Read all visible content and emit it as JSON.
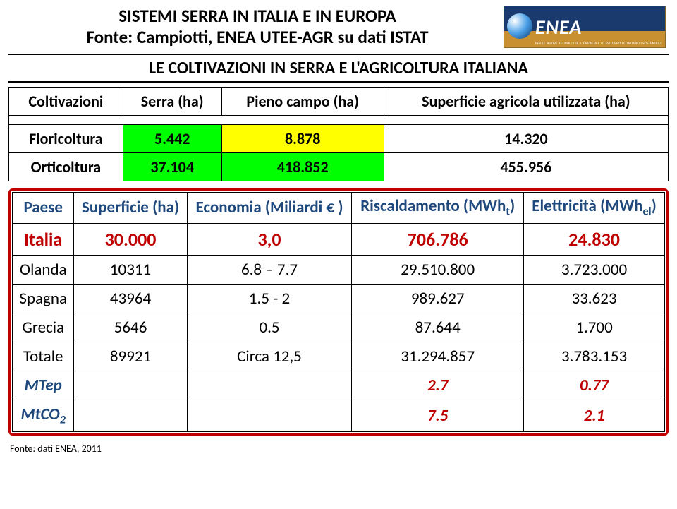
{
  "header": {
    "title_line1": "SISTEMI SERRA IN ITALIA E IN EUROPA",
    "title_line2": "Fonte: Campiotti, ENEA UTEE-AGR su dati ISTAT",
    "logo_name": "ENEA",
    "logo_sub": "PER LE NUOVE TECNOLOGIE, L'ENERGIA E LO SVILUPPO ECONOMICO SOSTENIBILE"
  },
  "subtitle": "LE COLTIVAZIONI IN SERRA E L'AGRICOLTURA ITALIANA",
  "table1": {
    "headers": {
      "coltivazioni": "Coltivazioni",
      "serra": "Serra (ha)",
      "pieno_campo": "Pieno campo (ha)",
      "superficie": "Superficie agricola utilizzata (ha)"
    },
    "rows": [
      {
        "label": "Floricoltura",
        "serra": "5.442",
        "pc": "8.878",
        "su": "14.320",
        "pc_color": "#ffff00"
      },
      {
        "label": "Orticoltura",
        "serra": "37.104",
        "pc": "418.852",
        "su": "455.956",
        "pc_color": "#00ff00"
      }
    ],
    "serra_color": "#00ff00"
  },
  "table2": {
    "headers": {
      "paese": "Paese",
      "superficie": "Superficie (ha)",
      "economia": "Economia (Miliardi € )",
      "riscaldamento_pre": "Riscaldamento (MWh",
      "riscaldamento_sub": "t",
      "riscaldamento_post": ")",
      "elettricita_pre": "Elettricità (MWh",
      "elettricita_sub": "el",
      "elettricita_post": ")"
    },
    "rows": [
      {
        "paese": "Italia",
        "superficie": "30.000",
        "economia": "3,0",
        "risc": "706.786",
        "elet": "24.830",
        "highlight": true
      },
      {
        "paese": "Olanda",
        "superficie": "10311",
        "economia": "6.8 – 7.7",
        "risc": "29.510.800",
        "elet": "3.723.000"
      },
      {
        "paese": "Spagna",
        "superficie": "43964",
        "economia": "1.5 - 2",
        "risc": "989.627",
        "elet": "33.623"
      },
      {
        "paese": "Grecia",
        "superficie": "5646",
        "economia": "0.5",
        "risc": "87.644",
        "elet": "1.700"
      },
      {
        "paese": "Totale",
        "superficie": "89921",
        "economia": "Circa 12,5",
        "risc": "31.294.857",
        "elet": "3.783.153"
      }
    ],
    "emph_rows": [
      {
        "paese": "MTep",
        "risc": "2.7",
        "elet": "0.77"
      },
      {
        "paese_pre": "MtCO",
        "paese_sub": "2",
        "risc": "7.5",
        "elet": "2.1"
      }
    ]
  },
  "footnote": "Fonte: dati ENEA, 2011",
  "colors": {
    "border_highlight": "#c00000",
    "header_text": "#1f497d",
    "italia_text": "#c00000"
  }
}
